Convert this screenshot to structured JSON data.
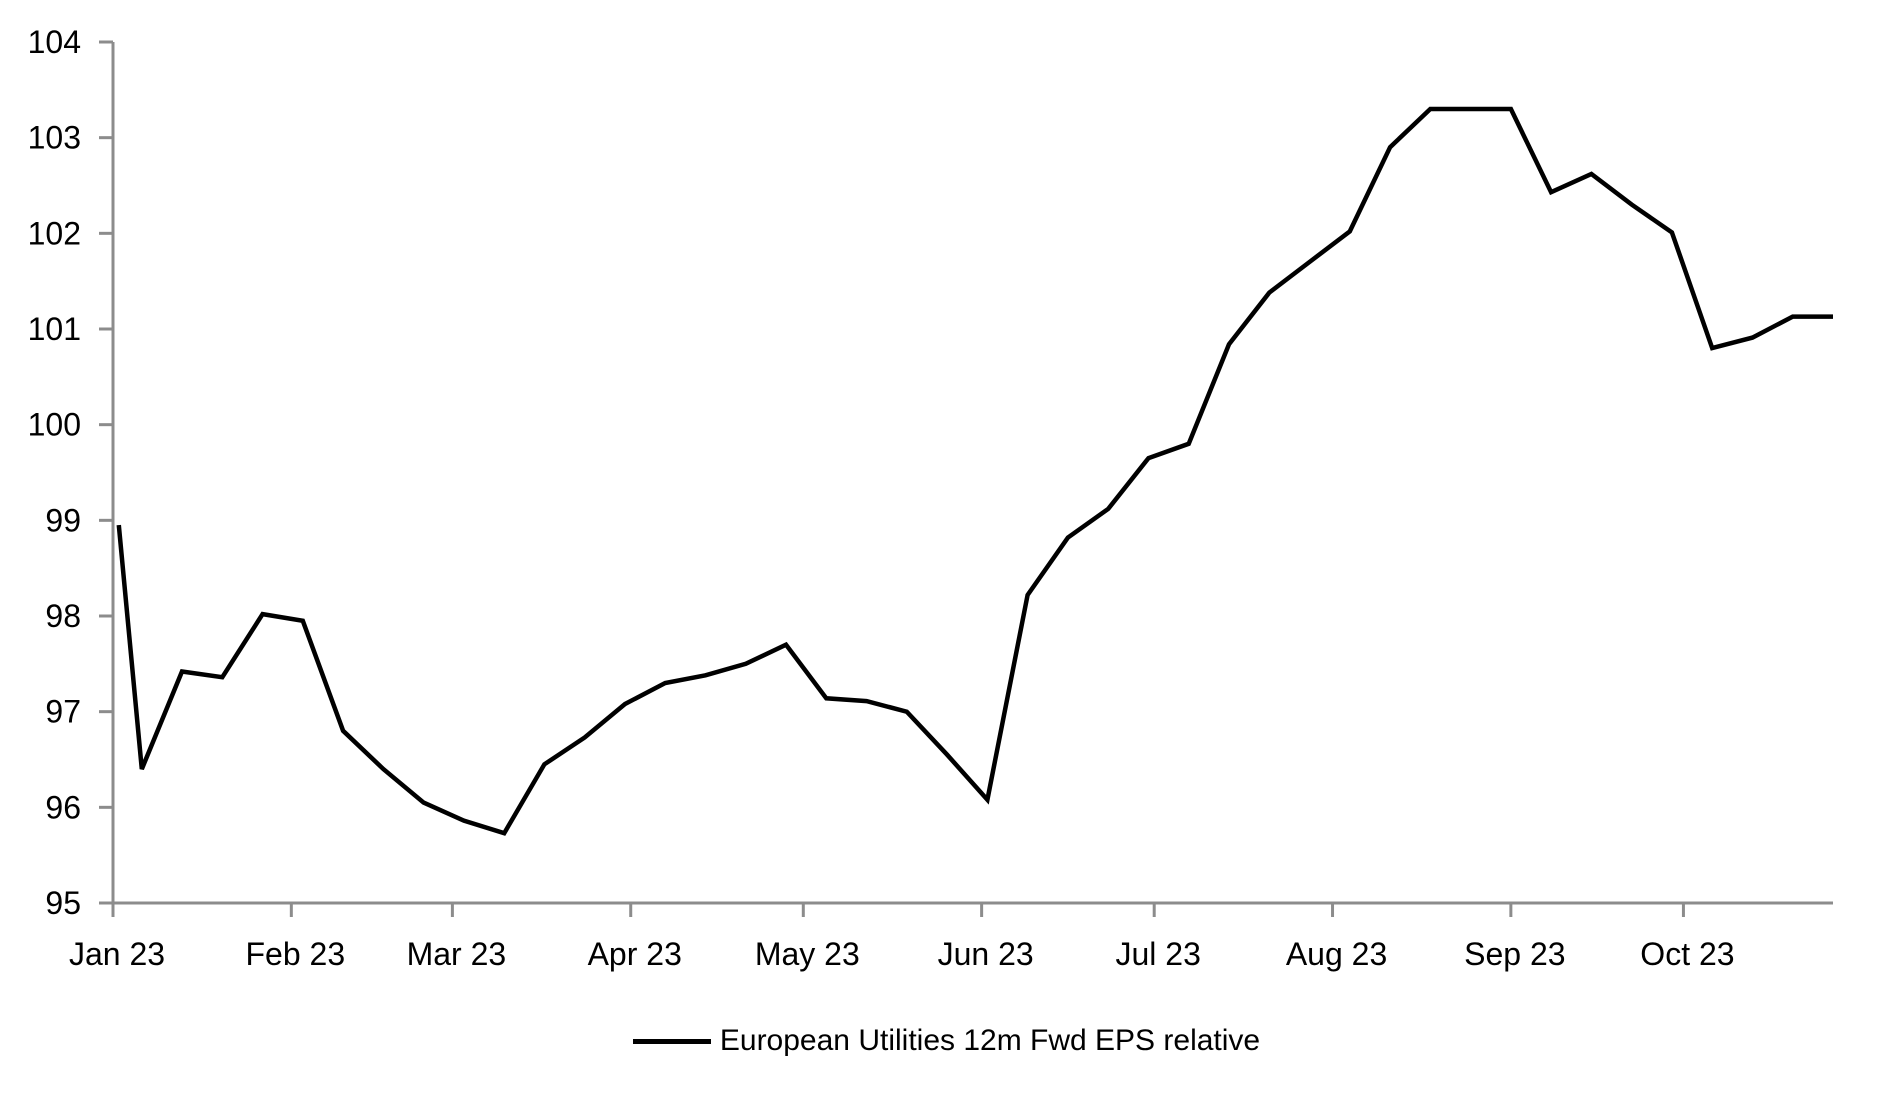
{
  "chart_data": {
    "type": "line",
    "title": "",
    "background_color": "#ffffff",
    "axis_color": "#8c8c8c",
    "line_color": "#000000",
    "grid": false,
    "legend_position": "bottom-center",
    "legend": [
      {
        "label": "European Utilities 12m Fwd EPS relative",
        "color": "#000000"
      }
    ],
    "ylim": [
      95,
      104
    ],
    "y_tick_step": 1,
    "y_tick_labels": [
      "95",
      "96",
      "97",
      "98",
      "99",
      "100",
      "101",
      "102",
      "103",
      "104"
    ],
    "x_range_days": [
      0,
      299
    ],
    "x_ticks": [
      {
        "label": "Jan 23",
        "day": 0
      },
      {
        "label": "Feb 23",
        "day": 31
      },
      {
        "label": "Mar 23",
        "day": 59
      },
      {
        "label": "Apr 23",
        "day": 90
      },
      {
        "label": "May 23",
        "day": 120
      },
      {
        "label": "Jun 23",
        "day": 151
      },
      {
        "label": "Jul 23",
        "day": 181
      },
      {
        "label": "Aug 23",
        "day": 212
      },
      {
        "label": "Sep 23",
        "day": 243
      },
      {
        "label": "Oct 23",
        "day": 273
      }
    ],
    "x": [
      "Jan 2",
      "Jan 6",
      "Jan 13",
      "Jan 20",
      "Jan 27",
      "Feb 3",
      "Feb 10",
      "Feb 17",
      "Feb 24",
      "Mar 3",
      "Mar 10",
      "Mar 17",
      "Mar 24",
      "Mar 31",
      "Apr 7",
      "Apr 14",
      "Apr 21",
      "Apr 28",
      "May 5",
      "May 12",
      "May 19",
      "May 26",
      "Jun 2",
      "Jun 9",
      "Jun 16",
      "Jun 23",
      "Jun 30",
      "Jul 7",
      "Jul 14",
      "Jul 21",
      "Jul 28",
      "Aug 4",
      "Aug 11",
      "Aug 18",
      "Aug 25",
      "Sep 1",
      "Sep 8",
      "Sep 15",
      "Sep 22",
      "Sep 29",
      "Oct 6",
      "Oct 13",
      "Oct 20",
      "Oct 27"
    ],
    "x_days": [
      1,
      5,
      12,
      19,
      26,
      33,
      40,
      47,
      54,
      61,
      68,
      75,
      82,
      89,
      96,
      103,
      110,
      117,
      124,
      131,
      138,
      145,
      152,
      159,
      166,
      173,
      180,
      187,
      194,
      201,
      208,
      215,
      222,
      229,
      236,
      243,
      250,
      257,
      264,
      271,
      278,
      285,
      292,
      299
    ],
    "series": [
      {
        "name": "European Utilities 12m Fwd EPS relative",
        "color": "#000000",
        "values": [
          98.95,
          96.4,
          97.42,
          97.36,
          98.02,
          97.95,
          96.8,
          96.4,
          96.05,
          95.86,
          95.73,
          96.45,
          96.73,
          97.08,
          97.3,
          97.38,
          97.5,
          97.7,
          97.14,
          97.11,
          97.0,
          96.55,
          96.08,
          98.22,
          98.82,
          99.12,
          99.65,
          99.8,
          100.84,
          101.38,
          101.7,
          102.02,
          102.9,
          103.3,
          103.3,
          103.3,
          102.43,
          102.62,
          102.3,
          102.01,
          100.8,
          100.91,
          101.13,
          101.13
        ]
      }
    ]
  }
}
